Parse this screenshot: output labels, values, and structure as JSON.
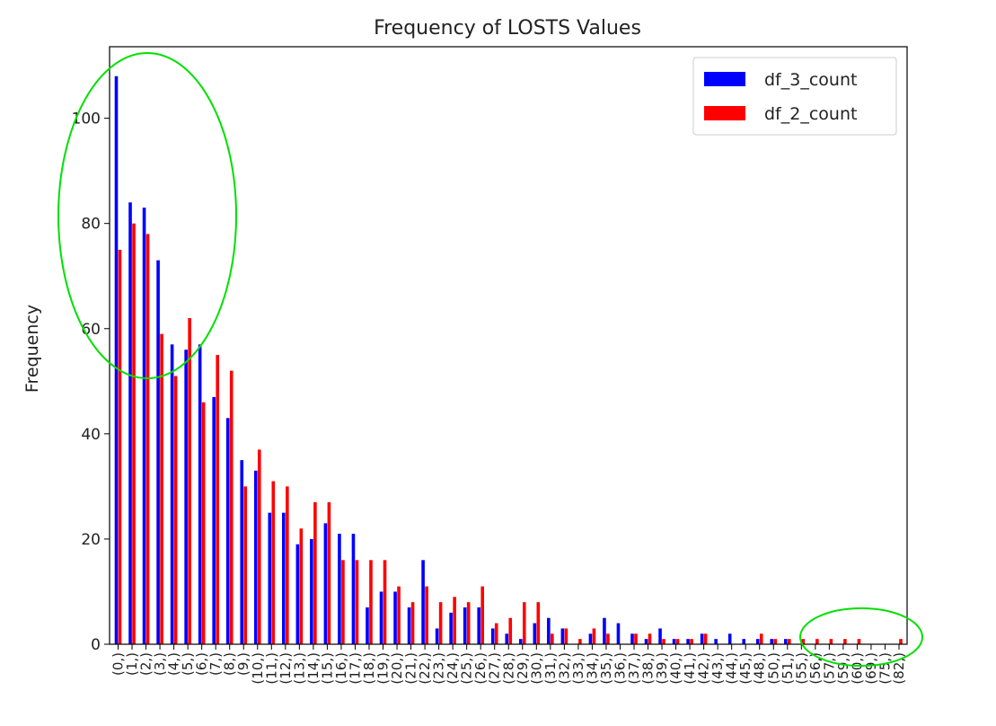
{
  "chart_data": {
    "type": "bar",
    "title": "Frequency of LOSTS Values",
    "xlabel": "",
    "ylabel": "Frequency",
    "ylim": [
      0,
      113.6
    ],
    "yticks": [
      0,
      20,
      40,
      60,
      80,
      100
    ],
    "categories": [
      "(0,)",
      "(1,)",
      "(2,)",
      "(3,)",
      "(4,)",
      "(5,)",
      "(6,)",
      "(7,)",
      "(8,)",
      "(9,)",
      "(10,)",
      "(11,)",
      "(12,)",
      "(13,)",
      "(14,)",
      "(15,)",
      "(16,)",
      "(17,)",
      "(18,)",
      "(19,)",
      "(20,)",
      "(21,)",
      "(22,)",
      "(23,)",
      "(24,)",
      "(25,)",
      "(26,)",
      "(27,)",
      "(28,)",
      "(29,)",
      "(30,)",
      "(31,)",
      "(32,)",
      "(33,)",
      "(34,)",
      "(35,)",
      "(36,)",
      "(37,)",
      "(38,)",
      "(39,)",
      "(40,)",
      "(41,)",
      "(42,)",
      "(43,)",
      "(44,)",
      "(45,)",
      "(48,)",
      "(50,)",
      "(51,)",
      "(55,)",
      "(56,)",
      "(57,)",
      "(59,)",
      "(60,)",
      "(69,)",
      "(75,)",
      "(82,)"
    ],
    "series": [
      {
        "name": "df_3_count",
        "color": "#0000ff",
        "values": [
          108,
          84,
          83,
          73,
          57,
          56,
          57,
          47,
          43,
          35,
          33,
          25,
          25,
          19,
          20,
          23,
          21,
          21,
          7,
          10,
          10,
          7,
          16,
          3,
          6,
          7,
          7,
          3,
          2,
          1,
          4,
          5,
          3,
          0,
          2,
          5,
          4,
          2,
          1,
          3,
          1,
          1,
          2,
          1,
          2,
          1,
          1,
          1,
          1,
          0,
          0,
          0,
          0,
          0,
          0,
          0,
          0
        ]
      },
      {
        "name": "df_2_count",
        "color": "#ff0000",
        "values": [
          75,
          80,
          78,
          59,
          51,
          62,
          46,
          55,
          52,
          30,
          37,
          31,
          30,
          22,
          27,
          27,
          16,
          16,
          16,
          16,
          11,
          8,
          11,
          8,
          9,
          8,
          11,
          4,
          5,
          8,
          8,
          2,
          3,
          1,
          3,
          2,
          0,
          2,
          2,
          1,
          1,
          1,
          2,
          0,
          0,
          0,
          2,
          1,
          1,
          1,
          1,
          1,
          1,
          1,
          0,
          0,
          1
        ]
      }
    ],
    "legend": {
      "placement": "top-right"
    },
    "grid": false,
    "annotations": [
      {
        "type": "ellipse",
        "color": "#00e000",
        "region": "first categories"
      },
      {
        "type": "ellipse",
        "color": "#00e000",
        "region": "last categories"
      }
    ]
  }
}
